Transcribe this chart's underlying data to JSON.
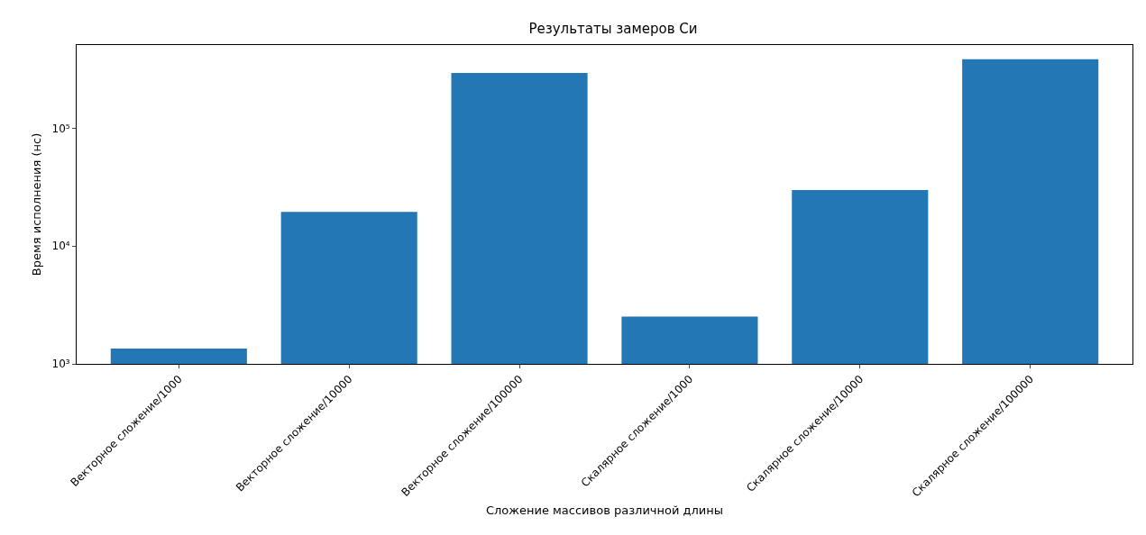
{
  "chart_data": {
    "type": "bar",
    "title": "Результаты замеров Си",
    "xlabel": "Сложение массивов различной длины",
    "ylabel": "Время исполнения (нс)",
    "categories": [
      "Векторное сложение/1000",
      "Векторное сложение/10000",
      "Векторное сложение/100000",
      "Скалярное сложение/1000",
      "Скалярное сложение/10000",
      "Скалярное сложение/100000"
    ],
    "values": [
      1350,
      19500,
      296000,
      2520,
      29900,
      386000
    ],
    "color": "#2277b4",
    "log": true,
    "ylim": [
      1000,
      510000
    ],
    "yticks": [
      {
        "value": 1000,
        "label": "10³"
      },
      {
        "value": 10000,
        "label": "10⁴"
      },
      {
        "value": 100000,
        "label": "10⁵"
      }
    ],
    "grid": false
  }
}
